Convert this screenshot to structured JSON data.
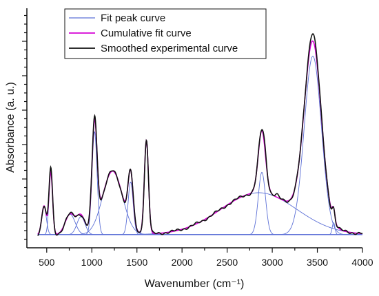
{
  "chart_data": {
    "type": "line",
    "xlabel": "Wavenumber (cm⁻¹)",
    "ylabel": "Absorbance (a. u.)",
    "xlim": [
      280,
      4000
    ],
    "ylim": [
      0,
      1
    ],
    "x_ticks": [
      500,
      1000,
      1500,
      2000,
      2500,
      3000,
      3500,
      4000
    ],
    "y_tick_labels": "none",
    "grid": false,
    "legend": {
      "placement": "top-left",
      "entries": [
        {
          "label": "Fit peak curve",
          "color": "#5b6fd6"
        },
        {
          "label": "Cumulative fit curve",
          "color": "#d400d4"
        },
        {
          "label": "Smoothed experimental curve",
          "color": "#111111"
        }
      ]
    },
    "baseline": 0.055,
    "peaks": [
      {
        "center": 470,
        "height": 0.12,
        "width": 25
      },
      {
        "center": 545,
        "height": 0.26,
        "width": 20
      },
      {
        "center": 760,
        "height": 0.085,
        "width": 55
      },
      {
        "center": 880,
        "height": 0.075,
        "width": 45
      },
      {
        "center": 1030,
        "height": 0.43,
        "width": 28
      },
      {
        "center": 1230,
        "height": 0.265,
        "width": 110
      },
      {
        "center": 1430,
        "height": 0.22,
        "width": 28
      },
      {
        "center": 1605,
        "height": 0.39,
        "width": 23
      },
      {
        "center": 2850,
        "height": 0.175,
        "width": 420
      },
      {
        "center": 2885,
        "height": 0.26,
        "width": 40
      },
      {
        "center": 3450,
        "height": 0.745,
        "width": 95
      },
      {
        "center": 3680,
        "height": 0.05,
        "width": 15
      }
    ],
    "experimental_extra": [
      {
        "center": 540,
        "height": 0.02,
        "width": 15
      },
      {
        "center": 1030,
        "height": 0.015,
        "width": 15
      },
      {
        "center": 2920,
        "height": 0.02,
        "width": 20
      },
      {
        "center": 3050,
        "height": 0.01,
        "width": 20
      },
      {
        "center": 3450,
        "height": 0.035,
        "width": 40
      }
    ],
    "series": [
      {
        "name": "Fit peak curve",
        "color": "#5b6fd6",
        "component": "individual_peaks"
      },
      {
        "name": "Cumulative fit curve",
        "color": "#d400d4",
        "component": "sum_of_peaks"
      },
      {
        "name": "Smoothed experimental curve",
        "color": "#111111",
        "component": "experimental"
      }
    ]
  }
}
